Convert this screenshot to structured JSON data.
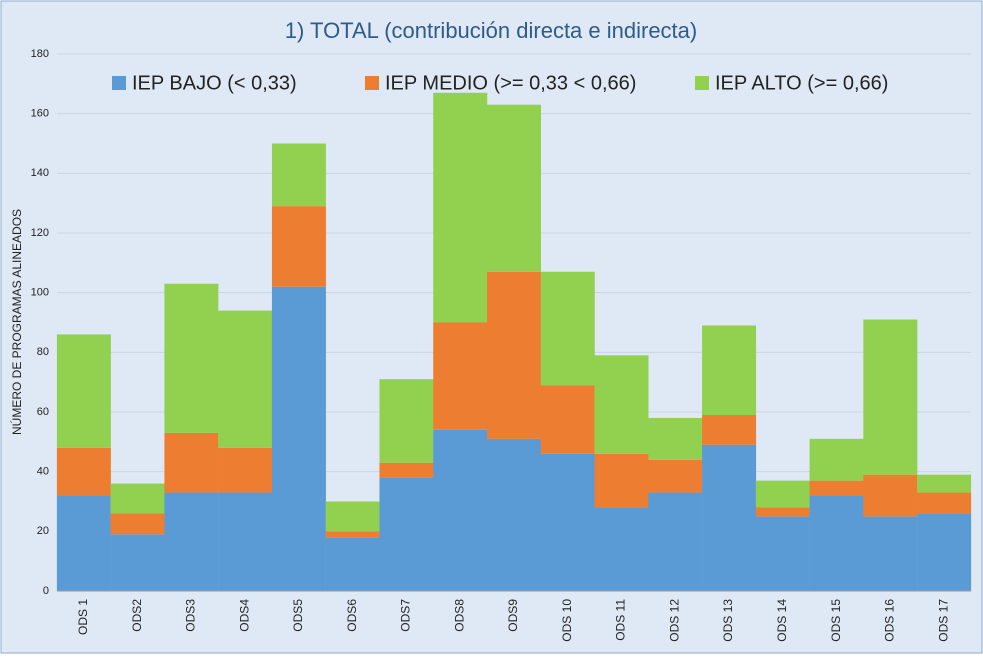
{
  "chart_data": {
    "type": "stacked_bar",
    "title": "1) TOTAL (contribución directa e indirecta)",
    "y_label": "NÚMERO DE PROGRAMAS ALINEADOS",
    "categories": [
      "ODS 1",
      "ODS2",
      "ODS3",
      "ODS4",
      "ODS5",
      "ODS6",
      "ODS7",
      "ODS8",
      "ODS9",
      "ODS 10",
      "ODS 11",
      "ODS 12",
      "ODS 13",
      "ODS 14",
      "ODS 15",
      "ODS 16",
      "ODS 17"
    ],
    "series": [
      {
        "name": "IEP BAJO (< 0,33)",
        "color": "#5b9bd5",
        "values": [
          32,
          19,
          33,
          33,
          102,
          18,
          38,
          54,
          51,
          46,
          28,
          33,
          49,
          25,
          32,
          25,
          26
        ]
      },
      {
        "name": "IEP MEDIO (>= 0,33 < 0,66)",
        "color": "#ed7d31",
        "values": [
          16,
          7,
          20,
          15,
          27,
          2,
          5,
          36,
          56,
          23,
          18,
          11,
          10,
          3,
          5,
          14,
          7
        ]
      },
      {
        "name": "IEP ALTO (>= 0,66)",
        "color": "#92d050",
        "values": [
          38,
          10,
          50,
          46,
          21,
          10,
          28,
          77,
          56,
          38,
          33,
          14,
          30,
          9,
          14,
          52,
          6
        ]
      }
    ],
    "ylim": [
      0,
      180
    ],
    "yticks": [
      0,
      20,
      40,
      60,
      80,
      100,
      120,
      140,
      160,
      180
    ],
    "grid": true
  }
}
